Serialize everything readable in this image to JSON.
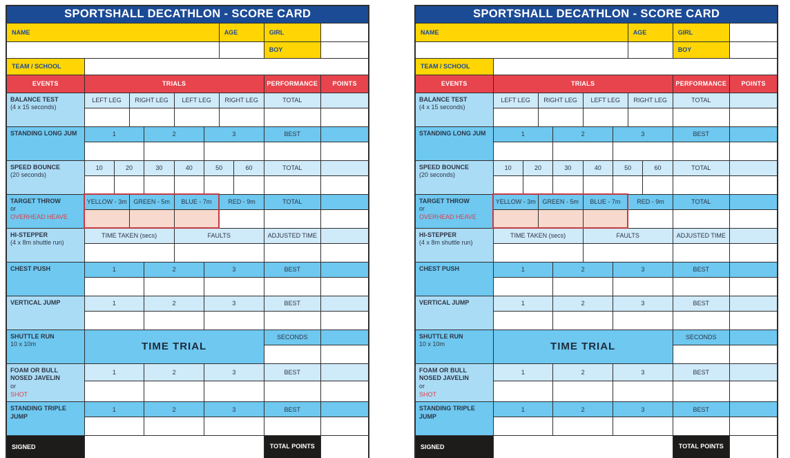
{
  "colors": {
    "navy": "#1c4b96",
    "yellow": "#ffd504",
    "red": "#e8444d",
    "midblue": "#6ec8f0",
    "lightblue": "#abdcf5",
    "lighterblue": "#cfeaf9",
    "pink": "#f7d9cd",
    "redline": "#c53a44",
    "blackcell": "#1d1c1a"
  },
  "card": {
    "title": "SPORTSHALL DECATHLON - SCORE CARD",
    "top": {
      "name_label": "NAME",
      "age_label": "AGE",
      "girl_label": "GIRL",
      "boy_label": "BOY",
      "team_label": "TEAM / SCHOOL"
    },
    "columns": {
      "events": "EVENTS",
      "trials": "TRIALS",
      "performance": "PERFORMANCE",
      "points": "POINTS"
    },
    "rows": {
      "balance": {
        "label": "BALANCE TEST",
        "note": "(4 x 15 seconds)",
        "trials": [
          "LEFT LEG",
          "RIGHT LEG",
          "LEFT LEG",
          "RIGHT LEG"
        ],
        "performance": "TOTAL"
      },
      "standing_long_jump": {
        "label": "STANDING LONG JUM",
        "trials": [
          "1",
          "2",
          "3"
        ],
        "performance": "BEST"
      },
      "speed_bounce": {
        "label": "SPEED BOUNCE",
        "note": "(20 seconds)",
        "trials": [
          "10",
          "20",
          "30",
          "40",
          "50",
          "60"
        ],
        "performance": "TOTAL"
      },
      "target_throw": {
        "label": "TARGET THROW",
        "or": "or",
        "alt": "OVERHEAD HEAVE",
        "trials": [
          "YELLOW - 3m",
          "GREEN - 5m",
          "BLUE - 7m",
          "RED - 9m"
        ],
        "performance": "TOTAL"
      },
      "hi_stepper": {
        "label": "HI-STEPPER",
        "note": "(4 x 8m shuttle run)",
        "trials": [
          "TIME TAKEN (secs)",
          "FAULTS"
        ],
        "performance": "ADJUSTED TIME"
      },
      "chest_push": {
        "label": "CHEST PUSH",
        "trials": [
          "1",
          "2",
          "3"
        ],
        "performance": "BEST"
      },
      "vertical_jump": {
        "label": "VERTICAL JUMP",
        "trials": [
          "1",
          "2",
          "3"
        ],
        "performance": "BEST"
      },
      "shuttle_run": {
        "label": "SHUTTLE RUN",
        "note": "10 x 10m",
        "trial_big": "TIME TRIAL",
        "performance": "SECONDS"
      },
      "javelin": {
        "label": "FOAM OR BULL NOSED JAVELIN",
        "or": "or",
        "alt": "SHOT",
        "trials": [
          "1",
          "2",
          "3"
        ],
        "performance": "BEST"
      },
      "triple_jump": {
        "label": "STANDING TRIPLE JUMP",
        "trials": [
          "1",
          "2",
          "3"
        ],
        "performance": "BEST"
      }
    },
    "footer": {
      "signed": "SIGNED",
      "total_points": "TOTAL POINTS"
    }
  }
}
